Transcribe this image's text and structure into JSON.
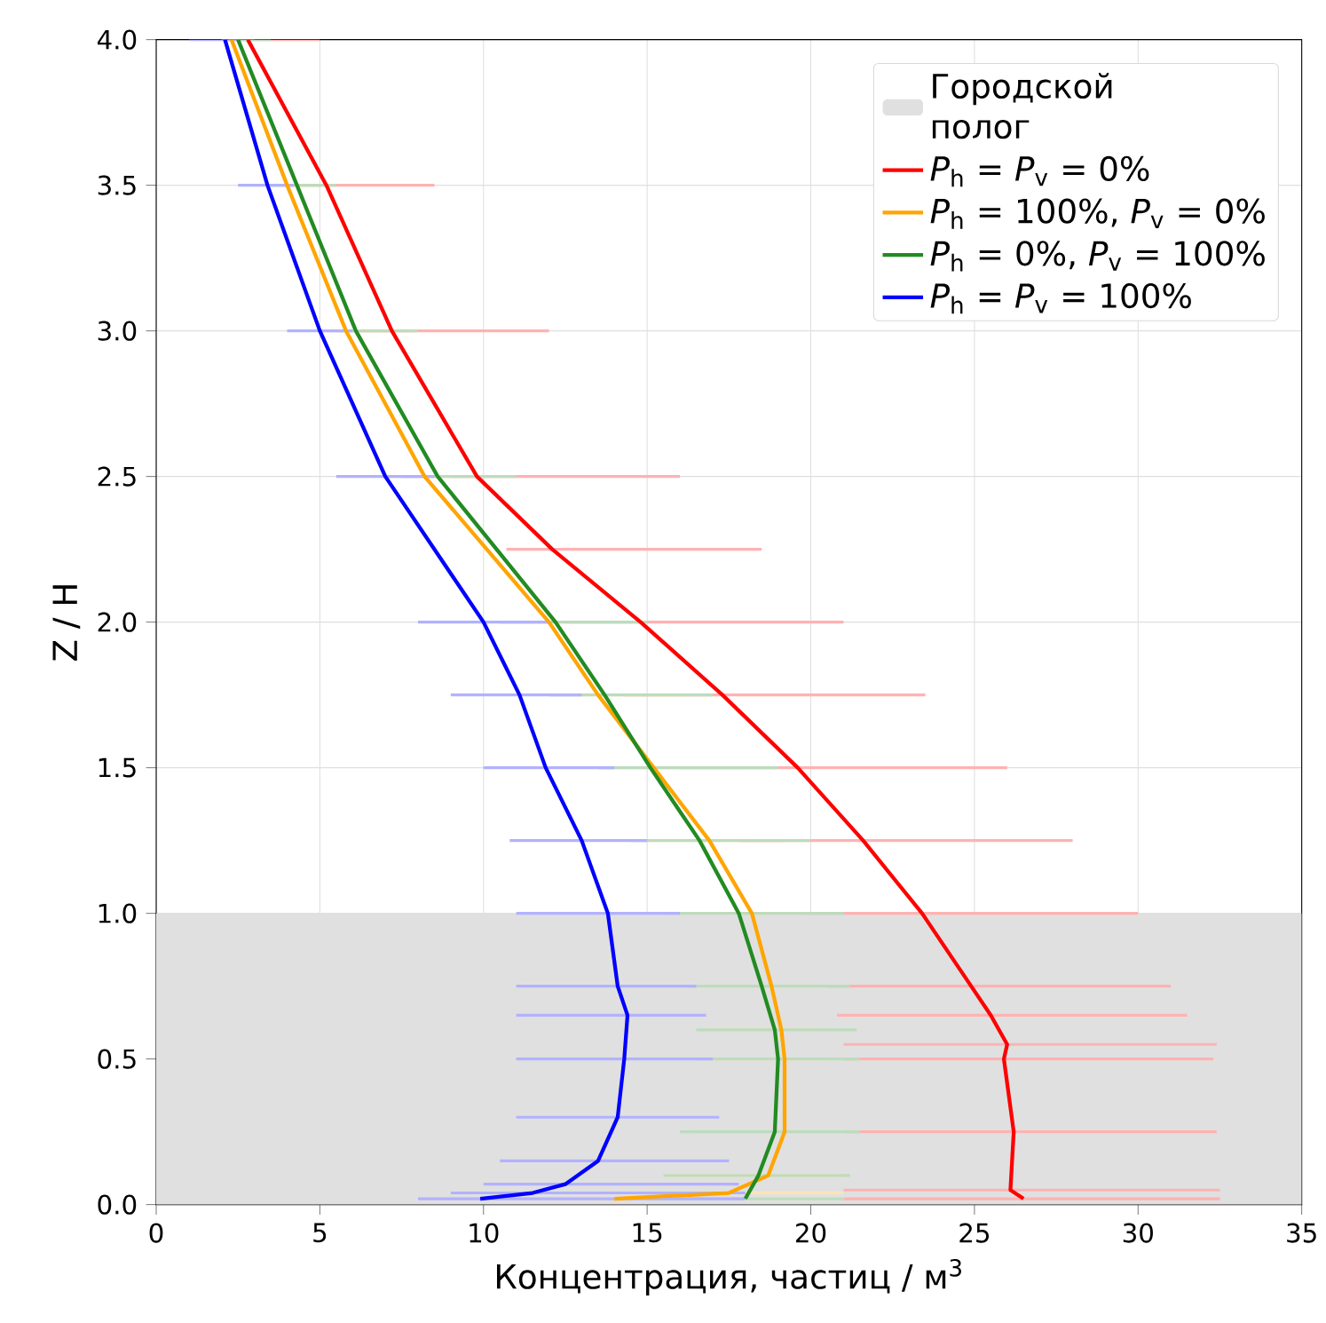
{
  "chart_data": {
    "type": "line",
    "xlabel": "Концентрация, частиц / м$^{3}$",
    "ylabel": "Z / H",
    "xlim": [
      0,
      35
    ],
    "ylim": [
      0,
      4
    ],
    "xticks": [
      0,
      5,
      10,
      15,
      20,
      25,
      30,
      35
    ],
    "yticks": [
      {
        "value": 0,
        "label": "0.0"
      },
      {
        "value": 0.5,
        "label": "0.5"
      },
      {
        "value": 1,
        "label": "1.0"
      },
      {
        "value": 1.5,
        "label": "1.5"
      },
      {
        "value": 2,
        "label": "2.0"
      },
      {
        "value": 2.5,
        "label": "2.5"
      },
      {
        "value": 3,
        "label": "3.0"
      },
      {
        "value": 3.5,
        "label": "3.5"
      },
      {
        "value": 4,
        "label": "4.0"
      }
    ],
    "grid": true,
    "legend": "top right",
    "bands": [
      {
        "axis": "y",
        "from": 0,
        "to": 1,
        "label": "Городской\nполог",
        "color": "#e0e0e0"
      }
    ],
    "series": [
      {
        "name": "*P*$_{h}$ = *P*$_{v}$ = 0%",
        "color": "#ff0000",
        "x": [
          26.5,
          26.1,
          26.2,
          25.9,
          26.0,
          25.5,
          24.9,
          23.4,
          21.6,
          19.6,
          17.3,
          14.8,
          12.1,
          9.8,
          7.2,
          5.2,
          2.8
        ],
        "values": [
          0.02,
          0.05,
          0.25,
          0.5,
          0.55,
          0.65,
          0.75,
          1.0,
          1.25,
          1.5,
          1.75,
          2.0,
          2.25,
          2.5,
          3.0,
          3.5,
          4.0
        ],
        "xerrors": [
          [
            21.0,
            32.5
          ],
          [
            21.0,
            32.5
          ],
          [
            21.0,
            32.4
          ],
          [
            21.0,
            32.3
          ],
          [
            21.0,
            32.4
          ],
          [
            20.8,
            31.5
          ],
          [
            20.5,
            31.0
          ],
          [
            19.5,
            30.0
          ],
          [
            17.8,
            28.0
          ],
          [
            16.0,
            26.0
          ],
          [
            14.3,
            23.5
          ],
          [
            12.5,
            21.0
          ],
          [
            10.7,
            18.5
          ],
          [
            9.0,
            16.0
          ],
          [
            6.0,
            12.0
          ],
          [
            4.0,
            8.5
          ],
          [
            2.0,
            5.0
          ]
        ]
      },
      {
        "name": "*P*$_{h}$ = 100%, *P*$_{v}$ = 0%",
        "color": "#ffa500",
        "x": [
          14.0,
          17.5,
          18.7,
          19.2,
          19.2,
          19.1,
          18.8,
          18.2,
          16.9,
          15.2,
          13.5,
          12.0,
          8.2,
          5.8,
          4.0,
          2.3
        ],
        "values": [
          0.02,
          0.04,
          0.1,
          0.25,
          0.5,
          0.6,
          0.75,
          1.0,
          1.25,
          1.5,
          1.75,
          2.0,
          2.5,
          3.0,
          3.5,
          4.0
        ],
        "xerrors": [
          [
            13.5,
            21.0
          ],
          [
            14.5,
            21.0
          ],
          [
            15.5,
            21.0
          ],
          [
            16.5,
            20.8
          ],
          [
            17.0,
            20.5
          ],
          [
            17.0,
            20.3
          ],
          [
            16.5,
            20.2
          ],
          [
            15.8,
            20.0
          ],
          [
            14.8,
            19.2
          ],
          [
            13.5,
            18.0
          ],
          [
            12.0,
            16.0
          ],
          [
            10.5,
            14.0
          ],
          [
            7.0,
            10.0
          ],
          [
            5.0,
            7.5
          ],
          [
            3.5,
            5.0
          ],
          [
            2.0,
            3.0
          ]
        ]
      },
      {
        "name": "*P*$_{h}$ = 0%, *P*$_{v}$ = 100%",
        "color": "#228b22",
        "x": [
          18.0,
          18.4,
          18.9,
          19.0,
          18.9,
          18.5,
          17.8,
          16.6,
          15.1,
          13.7,
          12.2,
          8.6,
          6.1,
          4.3,
          2.5
        ],
        "values": [
          0.02,
          0.1,
          0.25,
          0.5,
          0.6,
          0.75,
          1.0,
          1.25,
          1.5,
          1.75,
          2.0,
          2.5,
          3.0,
          3.5,
          4.0
        ],
        "xerrors": [
          [
            15.0,
            21.0
          ],
          [
            15.5,
            21.2
          ],
          [
            16.0,
            21.5
          ],
          [
            16.5,
            21.5
          ],
          [
            16.5,
            21.4
          ],
          [
            16.2,
            21.2
          ],
          [
            15.5,
            21.0
          ],
          [
            14.5,
            20.0
          ],
          [
            13.5,
            19.0
          ],
          [
            12.0,
            17.0
          ],
          [
            10.5,
            15.0
          ],
          [
            7.5,
            11.0
          ],
          [
            5.5,
            8.0
          ],
          [
            3.5,
            5.5
          ],
          [
            2.2,
            3.5
          ]
        ]
      },
      {
        "name": "*P*$_{h}$ = *P*$_{v}$ = 100%",
        "color": "#0000ff",
        "x": [
          9.9,
          11.5,
          12.5,
          13.5,
          14.1,
          14.3,
          14.4,
          14.1,
          13.8,
          13.0,
          11.9,
          11.1,
          10.0,
          7.0,
          5.0,
          3.4,
          2.1
        ],
        "values": [
          0.02,
          0.04,
          0.07,
          0.15,
          0.3,
          0.5,
          0.65,
          0.75,
          1.0,
          1.25,
          1.5,
          1.75,
          2.0,
          2.5,
          3.0,
          3.5,
          4.0
        ],
        "xerrors": [
          [
            8.0,
            18.0
          ],
          [
            9.0,
            18.0
          ],
          [
            10.0,
            17.8
          ],
          [
            10.5,
            17.5
          ],
          [
            11.0,
            17.2
          ],
          [
            11.0,
            17.0
          ],
          [
            11.0,
            16.8
          ],
          [
            11.0,
            16.5
          ],
          [
            11.0,
            16.0
          ],
          [
            10.8,
            15.0
          ],
          [
            10.0,
            14.0
          ],
          [
            9.0,
            13.0
          ],
          [
            8.0,
            12.0
          ],
          [
            5.5,
            8.5
          ],
          [
            4.0,
            6.0
          ],
          [
            2.5,
            4.2
          ],
          [
            1.0,
            2.6
          ]
        ]
      }
    ]
  }
}
